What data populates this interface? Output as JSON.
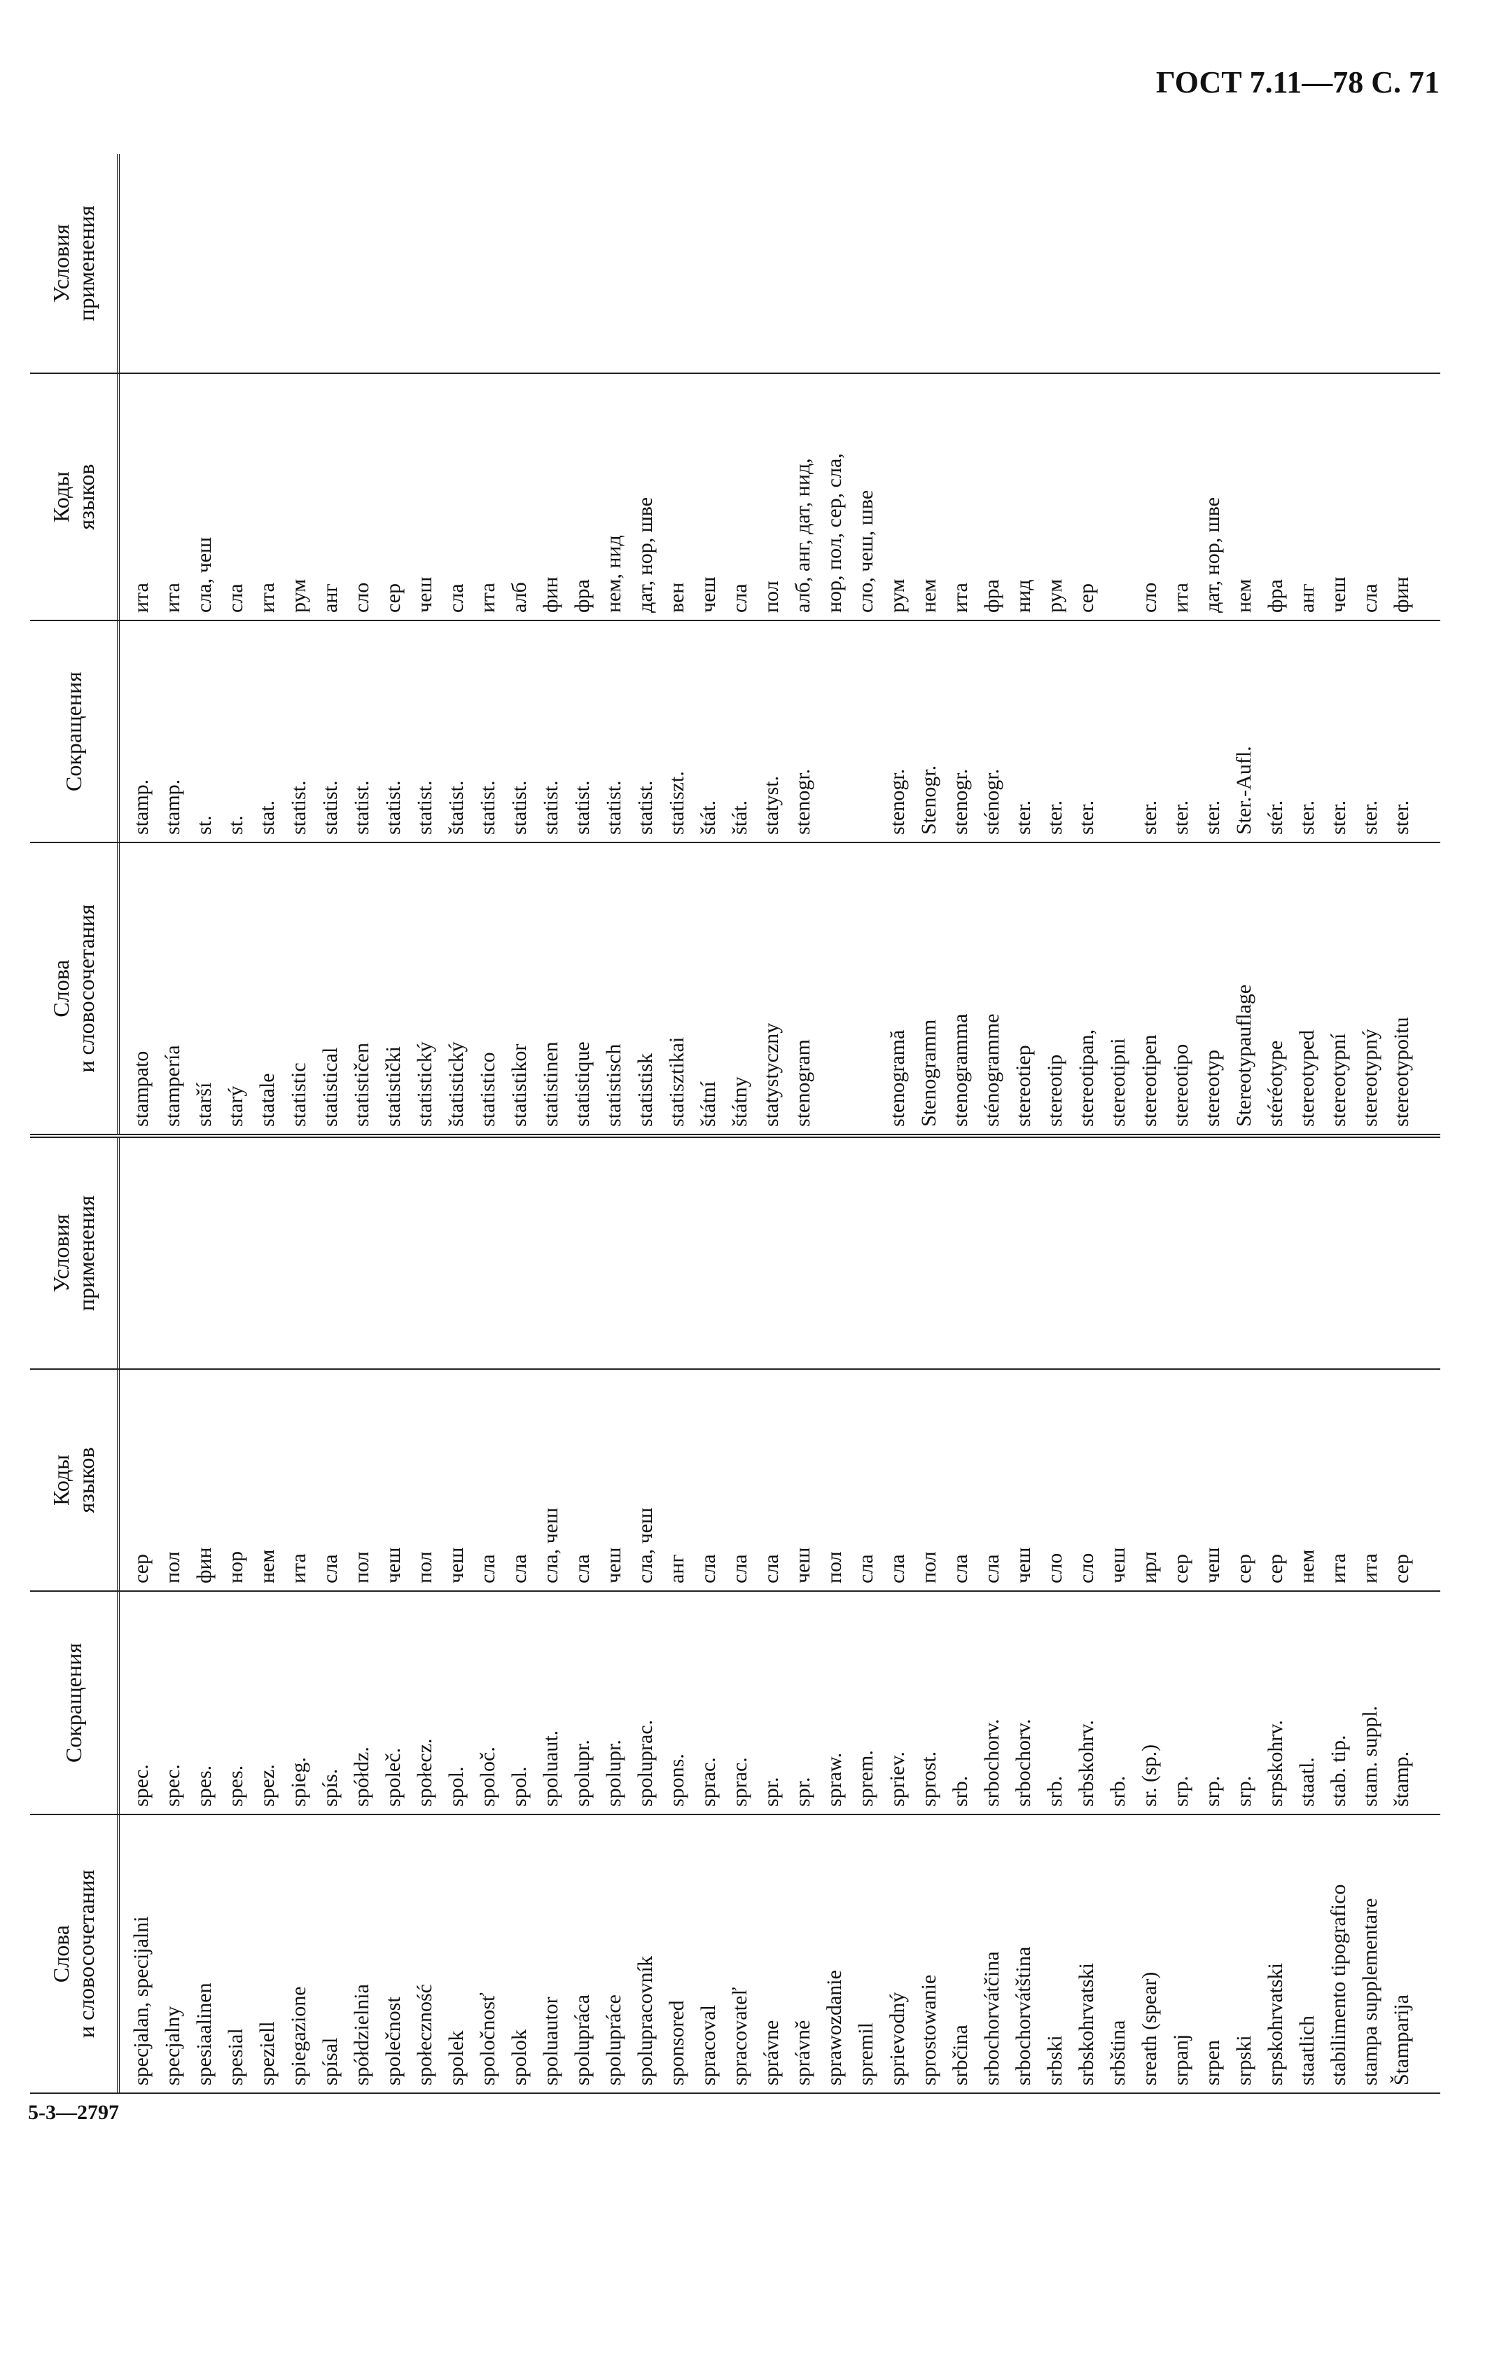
{
  "header": {
    "title": "ГОСТ 7.11—78 С. 71"
  },
  "footer": {
    "code": "5-3—2797"
  },
  "table": {
    "columns": [
      "Слова\nи словосочетания",
      "Сокращения",
      "Коды\nязыков",
      "Условия\nприменения"
    ],
    "groups": [
      {
        "rows": [
          [
            "specjalan, specijalni",
            "spec.",
            "сер",
            null
          ],
          [
            "specjalny",
            "spec.",
            "пол",
            null
          ],
          [
            "spesiaalinen",
            "spes.",
            "фин",
            null
          ],
          [
            "spesial",
            "spes.",
            "нор",
            null
          ],
          [
            "speziell",
            "spez.",
            "нем",
            null
          ],
          [
            "spiegazione",
            "spieg.",
            "ита",
            null
          ],
          [
            "spísal",
            "spís.",
            "сла",
            null
          ],
          [
            "spółdzielnia",
            "spółdz.",
            "пол",
            null
          ],
          [
            "společnost",
            "společ.",
            "чеш",
            null
          ],
          [
            "społeczność",
            "społecz.",
            "пол",
            null
          ],
          [
            "spolek",
            "spol.",
            "чеш",
            null
          ],
          [
            "spoločnosť",
            "spoloč.",
            "сла",
            null
          ],
          [
            "spolok",
            "spol.",
            "сла",
            null
          ],
          [
            "spoluautor",
            "spoluaut.",
            "сла, чеш",
            null
          ],
          [
            "spolupráca",
            "spolupr.",
            "сла",
            null
          ],
          [
            "spolupráce",
            "spolupr.",
            "чеш",
            null
          ],
          [
            "spolupracovník",
            "spoluprac.",
            "сла, чеш",
            null
          ],
          [
            "sponsored",
            "spons.",
            "анг",
            null
          ],
          [
            "spracoval",
            "sprac.",
            "сла",
            null
          ],
          [
            "spracovateľ",
            "sprac.",
            "сла",
            null
          ],
          [
            "správne",
            "spr.",
            "сла",
            null
          ],
          [
            "správně",
            "spr.",
            "чеш",
            null
          ],
          [
            "sprawozdanie",
            "spraw.",
            "пол",
            null
          ],
          [
            "spremil",
            "sprem.",
            "сла",
            null
          ],
          [
            "sprievodný",
            "spriev.",
            "сла",
            null
          ],
          [
            "sprostowanie",
            "sprost.",
            "пол",
            null
          ],
          [
            "srbčina",
            "srb.",
            "сла",
            null
          ],
          [
            "srbochorvátčina",
            "srbochorv.",
            "сла",
            null
          ],
          [
            "srbochorvátština",
            "srbochorv.",
            "чеш",
            null
          ],
          [
            "srbski",
            "srb.",
            "сло",
            null
          ],
          [
            "srbskohrvatski",
            "srbskohrv.",
            "сло",
            null
          ],
          [
            "srbština",
            "srb.",
            "чеш",
            null
          ],
          [
            "sreath (spear)",
            "sr. (sp.)",
            "ирл",
            null
          ],
          [
            "srpanj",
            "srp.",
            "сер",
            null
          ],
          [
            "srpen",
            "srp.",
            "чеш",
            null
          ],
          [
            "srpski",
            "srp.",
            "сер",
            null
          ],
          [
            "srpskohrvatski",
            "srpskohrv.",
            "сер",
            null
          ],
          [
            "staatlich",
            "staatl.",
            "нем",
            null
          ],
          [
            "stabilimento tipografico",
            "stab. tip.",
            "ита",
            null
          ],
          [
            "stampa supplementare",
            "stam. suppl.",
            "ита",
            null
          ],
          [
            "Štamparija",
            "štamp.",
            "сер",
            null
          ]
        ]
      },
      {
        "rows": [
          [
            "stampato",
            "stamp.",
            "ита",
            null
          ],
          [
            "stampería",
            "stamp.",
            "ита",
            null
          ],
          [
            "starší",
            "st.",
            "сла, чеш",
            null
          ],
          [
            "starý",
            "st.",
            "сла",
            null
          ],
          [
            "statale",
            "stat.",
            "ита",
            null
          ],
          [
            "statistic",
            "statist.",
            "рум",
            null
          ],
          [
            "statistical",
            "statist.",
            "анг",
            null
          ],
          [
            "statističen",
            "statist.",
            "сло",
            null
          ],
          [
            "statistički",
            "statist.",
            "сер",
            null
          ],
          [
            "statistický",
            "statist.",
            "чеш",
            null
          ],
          [
            "štatistický",
            "štatist.",
            "сла",
            null
          ],
          [
            "statistico",
            "statist.",
            "ита",
            null
          ],
          [
            "statistikor",
            "statist.",
            "алб",
            null
          ],
          [
            "statistinen",
            "statist.",
            "фин",
            null
          ],
          [
            "statistique",
            "statist.",
            "фра",
            null
          ],
          [
            "statistisch",
            "statist.",
            "нем, нид",
            null
          ],
          [
            "statistisk",
            "statist.",
            "дат, нор, шве",
            null
          ],
          [
            "statisztikai",
            "statiszt.",
            "вен",
            null
          ],
          [
            "štátní",
            "štát.",
            "чеш",
            null
          ],
          [
            "štátny",
            "štát.",
            "сла",
            null
          ],
          [
            "statystyczny",
            "statyst.",
            "пол",
            null
          ],
          [
            "stenogram",
            "stenogr.",
            "алб, анг, дат, нид,",
            null
          ],
          [
            null,
            null,
            "нор, пол, сер, сла,",
            null
          ],
          [
            null,
            null,
            "сло, чеш, шве",
            null
          ],
          [
            "stenogramă",
            "stenogr.",
            "рум",
            null
          ],
          [
            "Stenogramm",
            "Stenogr.",
            "нем",
            null
          ],
          [
            "stenogramma",
            "stenogr.",
            "ита",
            null
          ],
          [
            "sténogramme",
            "sténogr.",
            "фра",
            null
          ],
          [
            "stereotiep",
            "ster.",
            "нид",
            null
          ],
          [
            "stereotip",
            "ster.",
            "рум",
            null
          ],
          [
            "stereotipan,",
            "ster.",
            "сер",
            null
          ],
          [
            "stereotipni",
            null,
            null,
            null
          ],
          [
            "stereotipen",
            "ster.",
            "сло",
            null
          ],
          [
            "stereotipo",
            "ster.",
            "ита",
            null
          ],
          [
            "stereotyp",
            "ster.",
            "дат, нор, шве",
            null
          ],
          [
            "Stereotypauflage",
            "Ster.-Aufl.",
            "нем",
            null
          ],
          [
            "stéréotype",
            "stér.",
            "фра",
            null
          ],
          [
            "stereotyped",
            "ster.",
            "анг",
            null
          ],
          [
            "stereotypní",
            "ster.",
            "чеш",
            null
          ],
          [
            "stereotypný",
            "ster.",
            "сла",
            null
          ],
          [
            "stereotypoitu",
            "ster.",
            "фин",
            null
          ]
        ]
      }
    ]
  }
}
